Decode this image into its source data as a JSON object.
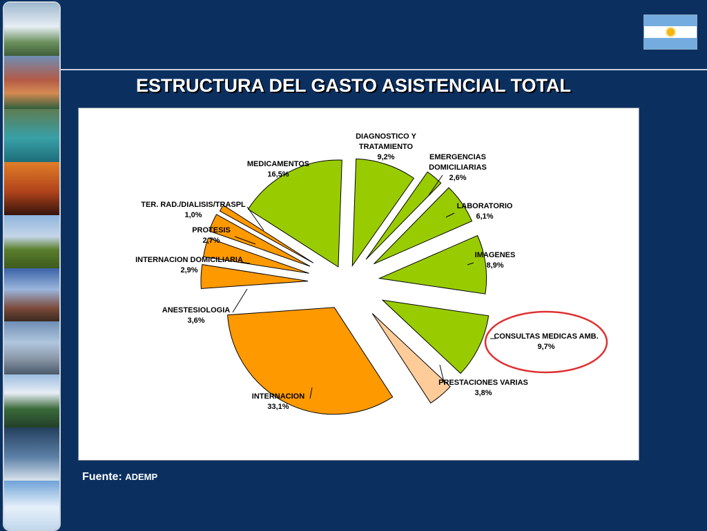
{
  "slide": {
    "title": "ESTRUCTURA DEL GASTO ASISTENCIAL TOTAL",
    "source_label": "Fuente:",
    "source_value": "ADEMP",
    "left_strip_icons": [
      "waterfall-photo",
      "mountains-photo",
      "river-photo",
      "palm-sunset-photo",
      "cattle-field-photo",
      "obelisk-tango-photo",
      "city-skyline-photo",
      "lake-mountains-photo",
      "whale-photo",
      "glacier-photo"
    ],
    "flag_icon": "argentina-flag-icon"
  },
  "colors": {
    "background": "#0b3060",
    "green": "#99cc00",
    "orange": "#ff9900",
    "peach": "#ffcc99",
    "highlight": "#e03030"
  },
  "chart_data": {
    "type": "pie",
    "title": "",
    "slices": [
      {
        "label_lines": [
          "DIAGNOSTICO Y",
          "TRATAMIENTO"
        ],
        "value_text": "9,2%",
        "value": 9.2,
        "color": "green"
      },
      {
        "label_lines": [
          "EMERGENCIAS",
          "DOMICILIARIAS"
        ],
        "value_text": "2,6%",
        "value": 2.6,
        "color": "green"
      },
      {
        "label_lines": [
          "LABORATORIO"
        ],
        "value_text": "6,1%",
        "value": 6.1,
        "color": "green"
      },
      {
        "label_lines": [
          "IMAGENES"
        ],
        "value_text": "8,9%",
        "value": 8.9,
        "color": "green"
      },
      {
        "label_lines": [
          "CONSULTAS MEDICAS AMB."
        ],
        "value_text": "9,7%",
        "value": 9.7,
        "color": "green",
        "highlighted": true
      },
      {
        "label_lines": [
          "PRESTACIONES VARIAS"
        ],
        "value_text": "3,8%",
        "value": 3.8,
        "color": "peach"
      },
      {
        "label_lines": [
          "INTERNACION"
        ],
        "value_text": "33,1%",
        "value": 33.1,
        "color": "orange"
      },
      {
        "label_lines": [
          "ANESTESIOLOGIA"
        ],
        "value_text": "3,6%",
        "value": 3.6,
        "color": "orange"
      },
      {
        "label_lines": [
          "INTERNACION DOMICILIARIA"
        ],
        "value_text": "2,9%",
        "value": 2.9,
        "color": "orange"
      },
      {
        "label_lines": [
          "PROTESIS"
        ],
        "value_text": "2,7%",
        "value": 2.7,
        "color": "orange"
      },
      {
        "label_lines": [
          "TER. RAD./DIALISIS/TRASPL"
        ],
        "value_text": "1,0%",
        "value": 1.0,
        "color": "orange"
      },
      {
        "label_lines": [
          "MEDICAMENTOS"
        ],
        "value_text": "16,5%",
        "value": 16.5,
        "color": "green"
      }
    ]
  }
}
